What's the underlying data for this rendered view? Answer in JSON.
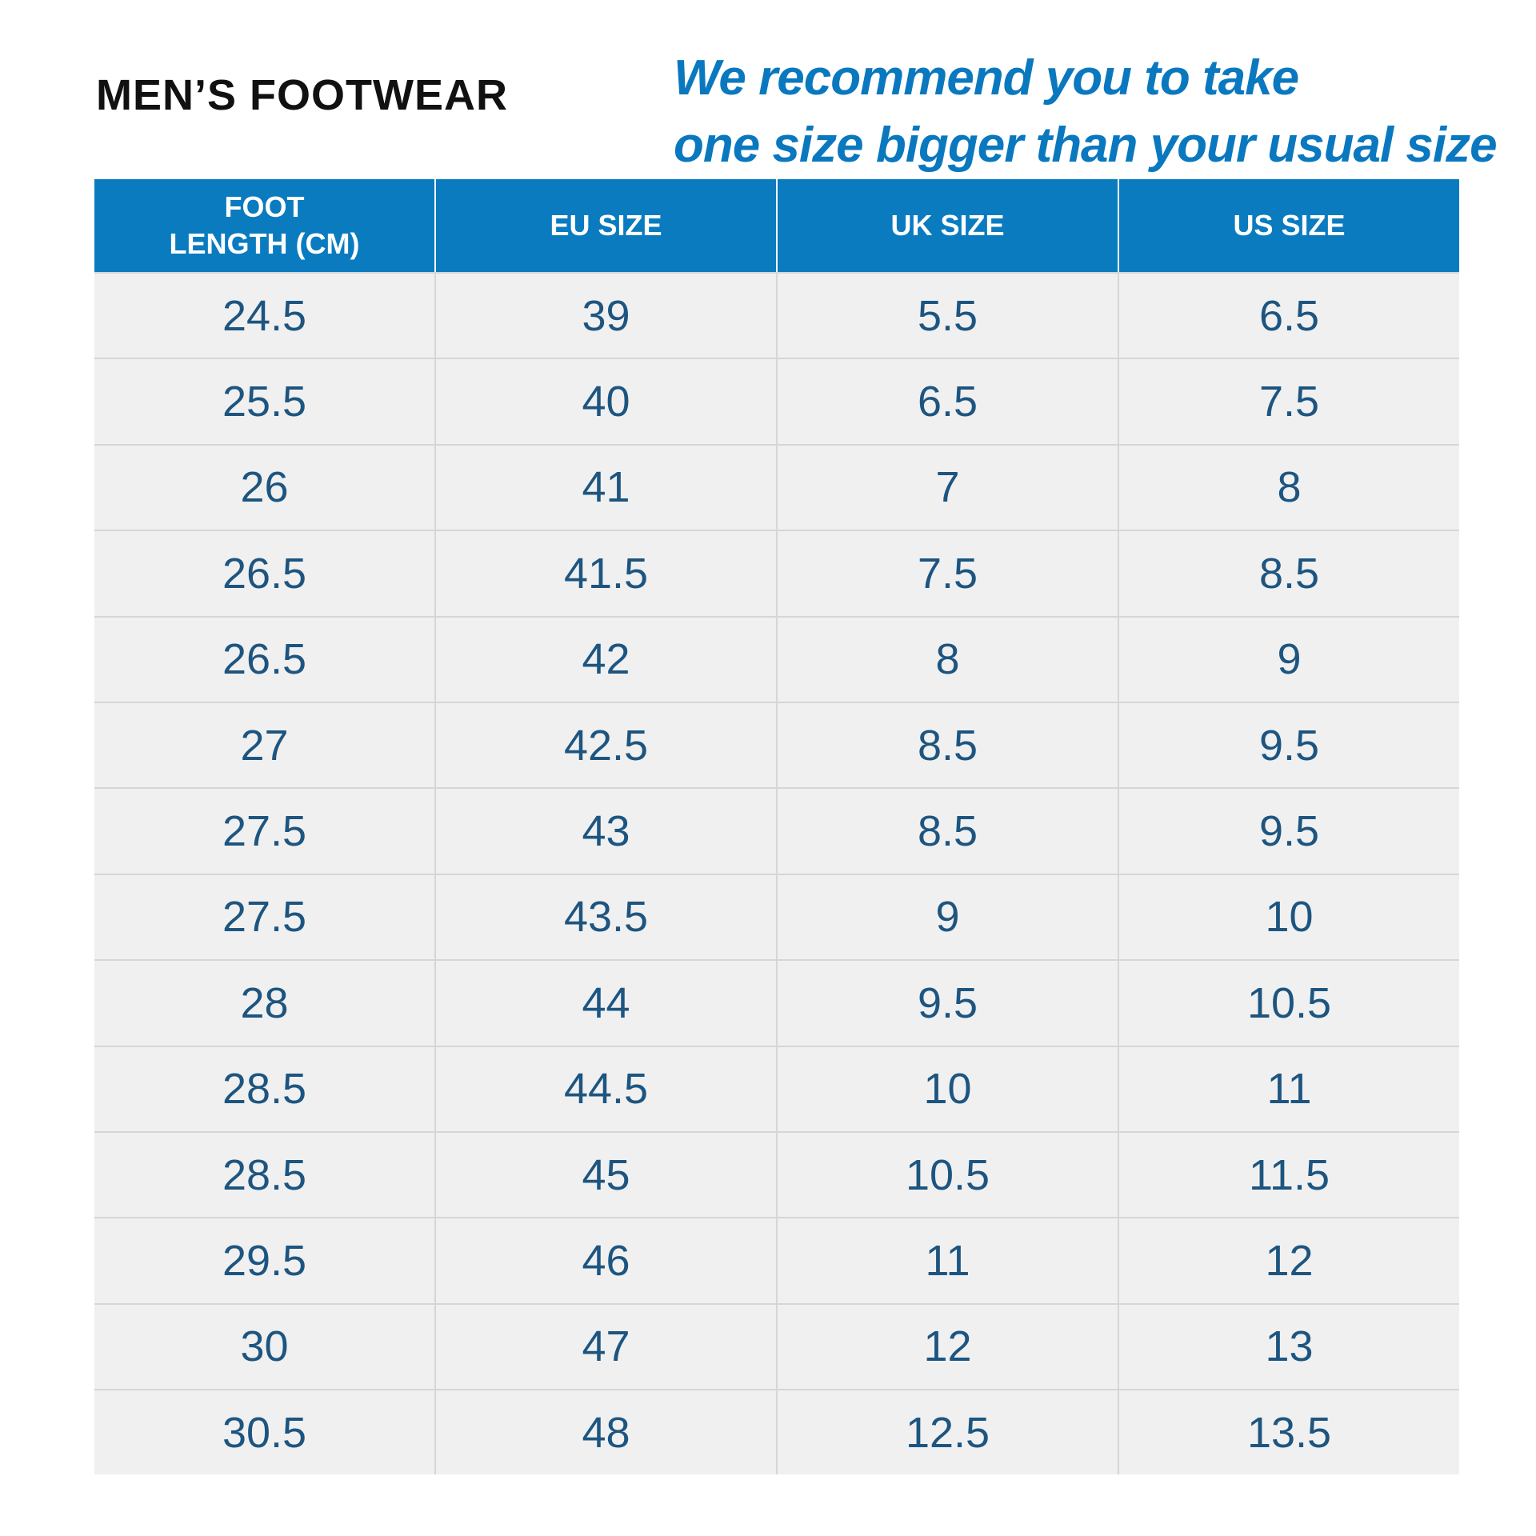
{
  "header": {
    "title": "MEN’S FOOTWEAR",
    "note": [
      "We recommend you to take",
      "one size bigger than your usual size"
    ]
  },
  "table": {
    "columns": [
      [
        "FOOT",
        "LENGTH (CM)"
      ],
      [
        "EU SIZE"
      ],
      [
        "UK SIZE"
      ],
      [
        "US SIZE"
      ]
    ],
    "rows": [
      [
        "24.5",
        "39",
        "5.5",
        "6.5"
      ],
      [
        "25.5",
        "40",
        "6.5",
        "7.5"
      ],
      [
        "26",
        "41",
        "7",
        "8"
      ],
      [
        "26.5",
        "41.5",
        "7.5",
        "8.5"
      ],
      [
        "26.5",
        "42",
        "8",
        "9"
      ],
      [
        "27",
        "42.5",
        "8.5",
        "9.5"
      ],
      [
        "27.5",
        "43",
        "8.5",
        "9.5"
      ],
      [
        "27.5",
        "43.5",
        "9",
        "10"
      ],
      [
        "28",
        "44",
        "9.5",
        "10.5"
      ],
      [
        "28.5",
        "44.5",
        "10",
        "11"
      ],
      [
        "28.5",
        "45",
        "10.5",
        "11.5"
      ],
      [
        "29.5",
        "46",
        "11",
        "12"
      ],
      [
        "30",
        "47",
        "12",
        "13"
      ],
      [
        "30.5",
        "48",
        "12.5",
        "13.5"
      ]
    ]
  }
}
